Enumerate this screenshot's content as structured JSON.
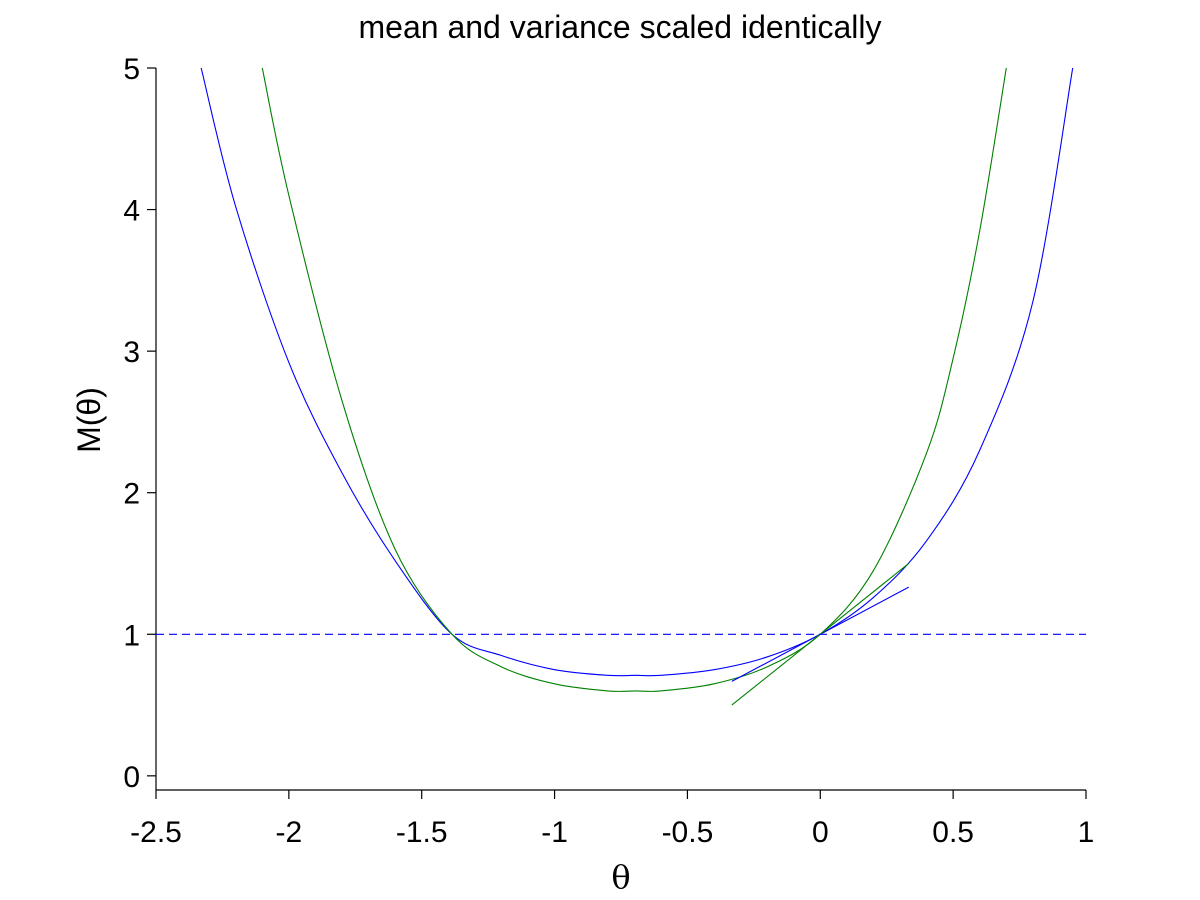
{
  "chart_data": {
    "type": "line",
    "title": "mean and variance scaled identically",
    "xlabel": "θ",
    "ylabel": "M(θ)",
    "xlim": [
      -2.5,
      1
    ],
    "ylim": [
      -0.1,
      5
    ],
    "xticks": [
      -2.5,
      -2,
      -1.5,
      -1,
      -0.5,
      0,
      0.5,
      1
    ],
    "xtick_labels": [
      "-2.5",
      "-2",
      "-1.5",
      "-1",
      "-0.5",
      "0",
      "0.5",
      "1"
    ],
    "yticks": [
      0,
      1,
      2,
      3,
      4,
      5
    ],
    "ytick_labels": [
      "0",
      "1",
      "2",
      "3",
      "4",
      "5"
    ],
    "grid": false,
    "legend": "none",
    "series": [
      {
        "color": "#0000ff",
        "style": "solid",
        "x": [
          -2.33,
          -2.2,
          -2.0,
          -1.8,
          -1.6,
          -1.386,
          -1.2,
          -1.0,
          -0.8,
          -0.693,
          -0.6,
          -0.4,
          -0.2,
          0.0,
          0.2,
          0.4,
          0.6,
          0.8,
          0.95
        ],
        "y": [
          5.0,
          4.02,
          2.92,
          2.14,
          1.52,
          1.0,
          0.85,
          0.75,
          0.71,
          0.71,
          0.71,
          0.75,
          0.84,
          1.0,
          1.26,
          1.66,
          2.3,
          3.35,
          5.0
        ]
      },
      {
        "color": "#008000",
        "style": "solid",
        "x": [
          -2.1,
          -2.0,
          -1.8,
          -1.6,
          -1.386,
          -1.2,
          -1.0,
          -0.8,
          -0.693,
          -0.6,
          -0.4,
          -0.2,
          0.0,
          0.2,
          0.4,
          0.5,
          0.6,
          0.7
        ],
        "y": [
          5.0,
          4.1,
          2.65,
          1.6,
          1.0,
          0.77,
          0.65,
          0.6,
          0.6,
          0.6,
          0.65,
          0.77,
          1.0,
          1.45,
          2.28,
          2.95,
          3.85,
          5.0
        ]
      },
      {
        "color": "#0000ff",
        "style": "solid",
        "x": [
          -0.333,
          0.333
        ],
        "y": [
          0.667,
          1.333
        ]
      },
      {
        "color": "#008000",
        "style": "solid",
        "x": [
          -0.333,
          0.333
        ],
        "y": [
          0.5,
          1.5
        ]
      },
      {
        "color": "#0000ff",
        "style": "dashed",
        "x": [
          -2.5,
          1.0
        ],
        "y": [
          1.0,
          1.0
        ]
      }
    ]
  }
}
